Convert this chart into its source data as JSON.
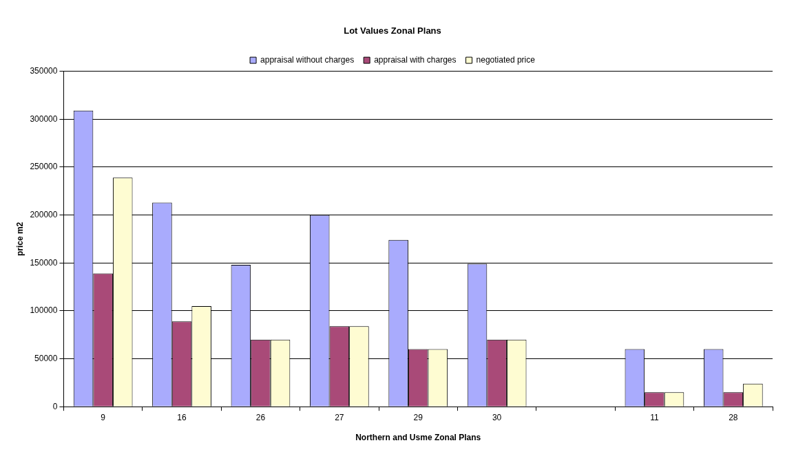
{
  "chart_data": {
    "type": "bar",
    "title": "Lot Values Zonal Plans",
    "xlabel": "Northern and Usme Zonal Plans",
    "ylabel": "price m2",
    "categories": [
      "9",
      "16",
      "26",
      "27",
      "29",
      "30",
      null,
      "11",
      "28"
    ],
    "series": [
      {
        "name": "appraisal without charges",
        "color": "#a9abfd",
        "values": [
          309000,
          213000,
          148000,
          200000,
          174000,
          149000,
          null,
          60000,
          60000
        ]
      },
      {
        "name": "appraisal with charges",
        "color": "#a94a78",
        "values": [
          139000,
          89000,
          70000,
          84000,
          60000,
          70000,
          null,
          15000,
          15000
        ]
      },
      {
        "name": "negotiated price",
        "color": "#fefcd2",
        "values": [
          239000,
          105000,
          70000,
          84000,
          60000,
          70000,
          null,
          15000,
          24000
        ]
      }
    ],
    "ylim": [
      0,
      350000
    ],
    "yticks": [
      0,
      50000,
      100000,
      150000,
      200000,
      250000,
      300000,
      350000
    ],
    "grid": "y",
    "legend": "top"
  }
}
